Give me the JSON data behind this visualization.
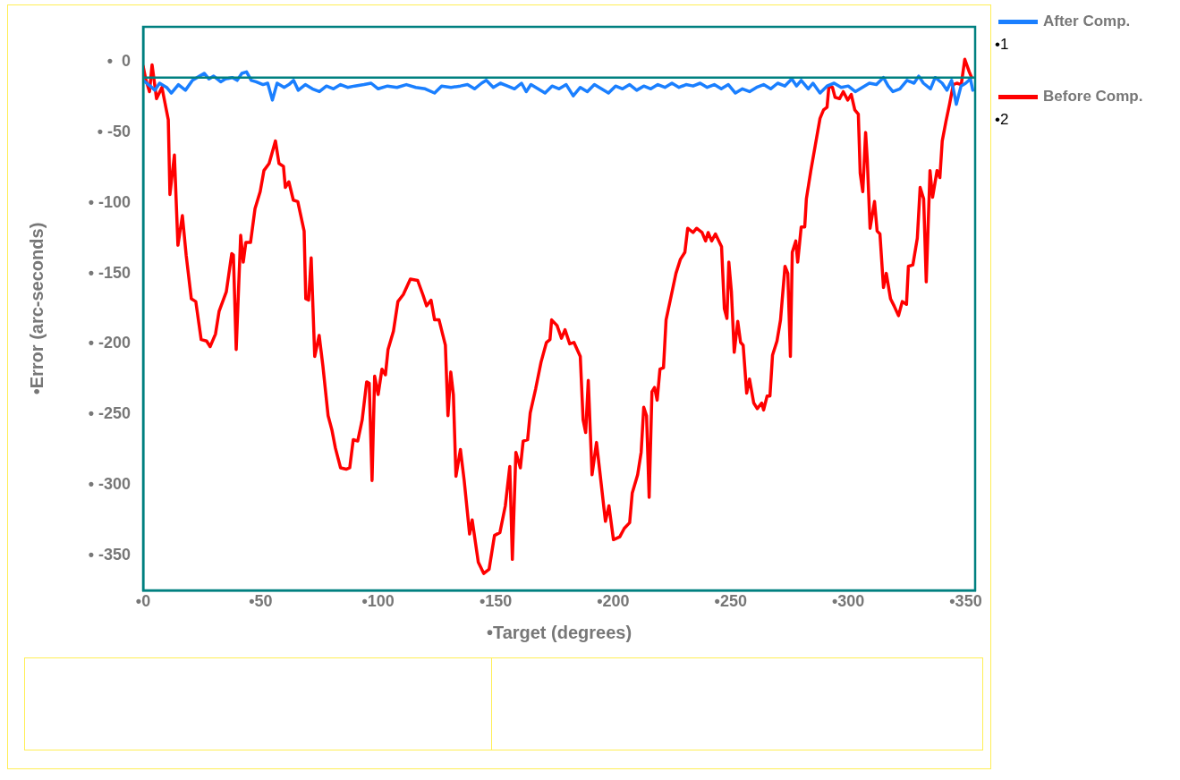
{
  "chart_data": {
    "type": "line",
    "xlabel": "•Target (degrees)",
    "ylabel": "•Error (arc-seconds)",
    "xlim": [
      0,
      354
    ],
    "xticks": [
      {
        "value": 0,
        "label": "•0"
      },
      {
        "value": 50,
        "label": "•50"
      },
      {
        "value": 100,
        "label": "•100"
      },
      {
        "value": 150,
        "label": "•150"
      },
      {
        "value": 200,
        "label": "•200"
      },
      {
        "value": 250,
        "label": "•250"
      },
      {
        "value": 300,
        "label": "•300"
      },
      {
        "value": 350,
        "label": "•350"
      }
    ],
    "ylim": [
      -375,
      25
    ],
    "yticks": [
      {
        "value": 0,
        "label": "•  0"
      },
      {
        "value": -50,
        "label": "• -50"
      },
      {
        "value": -100,
        "label": "• -100"
      },
      {
        "value": -150,
        "label": "• -150"
      },
      {
        "value": -200,
        "label": "• -200"
      },
      {
        "value": -250,
        "label": "• -250"
      },
      {
        "value": -300,
        "label": "• -300"
      },
      {
        "value": -350,
        "label": "• -350"
      }
    ],
    "grid": false,
    "legend": "right",
    "marker": "none",
    "line_style": "solid",
    "ref_lines": [
      {
        "axis": "y",
        "value": -11,
        "color": "#008080"
      }
    ],
    "annotations": [
      "•1",
      "•2"
    ],
    "series": [
      {
        "name": "After Comp.",
        "color": "#1a7fff",
        "x": [
          0,
          3,
          5,
          7,
          10,
          12,
          15,
          18,
          21,
          24,
          26,
          28,
          30,
          33,
          35,
          38,
          40,
          42,
          44,
          46,
          48,
          51,
          53,
          55,
          57,
          60,
          62,
          64,
          66,
          69,
          72,
          75,
          78,
          81,
          84,
          87,
          90,
          94,
          97,
          100,
          104,
          108,
          112,
          116,
          120,
          124,
          127,
          131,
          135,
          138,
          141,
          144,
          146,
          149,
          152,
          155,
          158,
          161,
          163,
          165,
          168,
          171,
          174,
          177,
          180,
          183,
          186,
          189,
          192,
          195,
          198,
          201,
          204,
          207,
          210,
          213,
          216,
          219,
          222,
          225,
          228,
          231,
          234,
          237,
          240,
          243,
          246,
          249,
          252,
          255,
          258,
          261,
          264,
          267,
          270,
          273,
          276,
          278,
          280,
          283,
          285,
          288,
          291,
          294,
          297,
          300,
          303,
          306,
          309,
          312,
          315,
          317,
          319,
          322,
          325,
          328,
          330,
          332,
          335,
          337,
          340,
          342,
          344,
          346,
          348,
          350,
          352,
          353
        ],
        "values": [
          -13,
          -17,
          -20,
          -15,
          -18,
          -22,
          -16,
          -20,
          -13,
          -10,
          -8,
          -12,
          -10,
          -14,
          -12,
          -11,
          -13,
          -8,
          -7,
          -13,
          -14,
          -16,
          -15,
          -27,
          -15,
          -18,
          -16,
          -13,
          -20,
          -16,
          -19,
          -21,
          -17,
          -19,
          -16,
          -18,
          -17,
          -16,
          -15,
          -19,
          -17,
          -18,
          -16,
          -18,
          -19,
          -22,
          -17,
          -18,
          -17,
          -16,
          -19,
          -15,
          -13,
          -18,
          -15,
          -17,
          -19,
          -15,
          -21,
          -16,
          -19,
          -22,
          -17,
          -19,
          -16,
          -24,
          -18,
          -21,
          -16,
          -19,
          -22,
          -17,
          -19,
          -16,
          -20,
          -17,
          -19,
          -16,
          -18,
          -15,
          -18,
          -16,
          -17,
          -15,
          -18,
          -16,
          -19,
          -16,
          -22,
          -19,
          -21,
          -18,
          -16,
          -19,
          -15,
          -17,
          -12,
          -17,
          -13,
          -19,
          -15,
          -22,
          -17,
          -15,
          -18,
          -17,
          -21,
          -18,
          -15,
          -16,
          -11,
          -17,
          -21,
          -19,
          -13,
          -15,
          -10,
          -15,
          -19,
          -11,
          -15,
          -20,
          -13,
          -30,
          -17,
          -15,
          -12,
          -20
        ]
      },
      {
        "name": "Before Comp.",
        "color": "#ff0000",
        "x": [
          0,
          1.1,
          2.7,
          3.8,
          5.7,
          8,
          10.7,
          11.4,
          13.3,
          14.8,
          16.7,
          18.3,
          20.5,
          22.4,
          24.7,
          27,
          28.5,
          30.8,
          32.3,
          35.4,
          37.7,
          38.4,
          39.6,
          41.5,
          42.6,
          43.7,
          45.7,
          47.6,
          49.8,
          51.4,
          53.6,
          56.3,
          57.8,
          59.7,
          60.5,
          62,
          63.9,
          65.8,
          68.5,
          69.2,
          70.4,
          71.5,
          73,
          74.9,
          76.5,
          78.7,
          80.3,
          81.8,
          84,
          86.4,
          87.9,
          89.4,
          91.3,
          93.2,
          95.1,
          96.2,
          97.4,
          98.5,
          100,
          101.6,
          103.1,
          104.2,
          106.5,
          108.4,
          110.7,
          113.7,
          116.8,
          119,
          120.6,
          122.5,
          124,
          125.9,
          128.6,
          129.7,
          130.9,
          132,
          133.1,
          135,
          136.6,
          138.9,
          140,
          142.6,
          144.9,
          147.2,
          149.5,
          151.8,
          154.1,
          156,
          157.1,
          158.6,
          160.5,
          161.7,
          163.6,
          164.7,
          167,
          169.3,
          171.6,
          173.1,
          173.8,
          176.1,
          178,
          179.5,
          181.5,
          183.3,
          186,
          187.2,
          188.3,
          189.4,
          191,
          192.9,
          194.4,
          196.7,
          198.2,
          200.1,
          202.8,
          204.7,
          207,
          208.1,
          210.4,
          211.9,
          213,
          214.2,
          215.3,
          216.5,
          217.6,
          218.7,
          219.9,
          221.4,
          222.5,
          224.8,
          226.7,
          228.6,
          230.5,
          231.7,
          234,
          235.5,
          237.8,
          239.3,
          240.4,
          241.9,
          243.5,
          246.1,
          247.3,
          248.4,
          249.2,
          250.3,
          251.5,
          253,
          254.2,
          255.3,
          256.8,
          258,
          259.8,
          261.3,
          263.2,
          264,
          265.5,
          266.7,
          267.8,
          269.7,
          271.2,
          273.1,
          274.3,
          275.4,
          276.2,
          277.7,
          278.5,
          280,
          281.5,
          282.2,
          284.1,
          286,
          288,
          289.5,
          291,
          291.8,
          293.3,
          294.4,
          296.3,
          297.9,
          299.8,
          301.3,
          302.8,
          304.3,
          305.1,
          306.2,
          307.4,
          308.1,
          309.3,
          311.2,
          312.3,
          313.5,
          315,
          316.2,
          318,
          319.5,
          321.4,
          323,
          324.8,
          325.6,
          327.5,
          329.4,
          330.6,
          332.1,
          333.2,
          334.8,
          335.9,
          337.8,
          339,
          340,
          341.6,
          343.1,
          344.7,
          346.2,
          348.1,
          349.6,
          351.5,
          352.5
        ],
        "values": [
          -3,
          -12,
          -21,
          -2,
          -26,
          -18,
          -41,
          -94,
          -66,
          -130,
          -109,
          -137,
          -168,
          -170,
          -197,
          -198,
          -202,
          -193,
          -177,
          -163,
          -136,
          -137,
          -204,
          -123,
          -142,
          -128,
          -128,
          -104,
          -92,
          -77,
          -72,
          -56,
          -72,
          -74,
          -89,
          -85,
          -98,
          -99,
          -120,
          -168,
          -169,
          -139,
          -209,
          -194,
          -216,
          -251,
          -261,
          -274,
          -288,
          -289,
          -288,
          -268,
          -269,
          -254,
          -227,
          -228,
          -297,
          -223,
          -236,
          -218,
          -222,
          -204,
          -191,
          -170,
          -165,
          -154,
          -155,
          -165,
          -173,
          -169,
          -183,
          -183,
          -201,
          -251,
          -220,
          -236,
          -294,
          -275,
          -297,
          -335,
          -325,
          -355,
          -363,
          -360,
          -336,
          -334,
          -315,
          -287,
          -353,
          -277,
          -288,
          -269,
          -268,
          -249,
          -232,
          -213,
          -199,
          -197,
          -183,
          -187,
          -196,
          -190,
          -200,
          -199,
          -209,
          -254,
          -263,
          -226,
          -293,
          -270,
          -292,
          -326,
          -315,
          -339,
          -337,
          -331,
          -327,
          -306,
          -293,
          -277,
          -245,
          -251,
          -309,
          -234,
          -231,
          -240,
          -218,
          -217,
          -183,
          -165,
          -150,
          -140,
          -135,
          -118,
          -121,
          -118,
          -121,
          -127,
          -121,
          -127,
          -122,
          -131,
          -175,
          -182,
          -142,
          -163,
          -206,
          -184,
          -199,
          -201,
          -235,
          -225,
          -242,
          -246,
          -242,
          -247,
          -237,
          -237,
          -208,
          -198,
          -183,
          -145,
          -150,
          -209,
          -135,
          -127,
          -142,
          -117,
          -117,
          -97,
          -77,
          -59,
          -40,
          -34,
          -32,
          -17,
          -18,
          -25,
          -26,
          -21,
          -27,
          -23,
          -34,
          -37,
          -79,
          -92,
          -50,
          -69,
          -118,
          -99,
          -120,
          -122,
          -160,
          -150,
          -168,
          -173,
          -180,
          -170,
          -172,
          -145,
          -144,
          -125,
          -89,
          -97,
          -156,
          -77,
          -96,
          -77,
          -82,
          -56,
          -42,
          -30,
          -16,
          -15,
          -16,
          2,
          -7,
          -11
        ]
      }
    ]
  }
}
